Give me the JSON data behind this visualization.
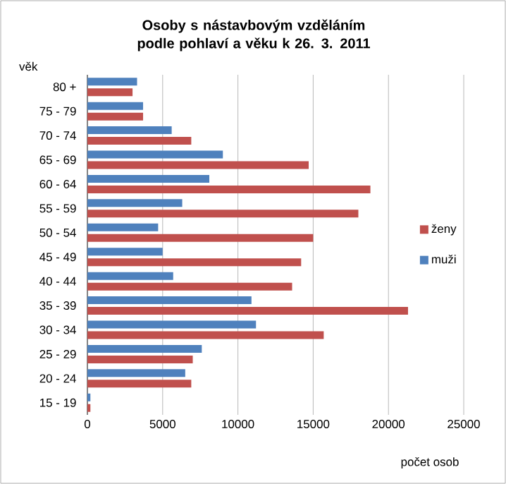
{
  "chart_data": {
    "type": "bar",
    "orientation": "horizontal",
    "title": "Osoby s nástavbovým vzděláním podle pohlaví a věku k 26. 3. 2011",
    "xlabel": "počet osob",
    "ylabel": "věk",
    "categories": [
      "80 +",
      "75 - 79",
      "70 - 74",
      "65 - 69",
      "60 - 64",
      "55 - 59",
      "50 - 54",
      "45 - 49",
      "40 - 44",
      "35 - 39",
      "30 - 34",
      "25 - 29",
      "20 - 24",
      "15 - 19"
    ],
    "series": [
      {
        "name": "ženy",
        "color": "#c0504d",
        "values": [
          3000,
          3700,
          6900,
          14700,
          18800,
          18000,
          15000,
          14200,
          13600,
          21300,
          15700,
          7000,
          6900,
          200
        ]
      },
      {
        "name": "muži",
        "color": "#4f81bd",
        "values": [
          3300,
          3700,
          5600,
          9000,
          8100,
          6300,
          4700,
          5000,
          5700,
          10900,
          11200,
          7600,
          6500,
          200
        ]
      }
    ],
    "xlim": [
      0,
      25000
    ],
    "xticks": [
      0,
      5000,
      10000,
      15000,
      20000,
      25000
    ],
    "grid": "x",
    "legend": "right"
  }
}
